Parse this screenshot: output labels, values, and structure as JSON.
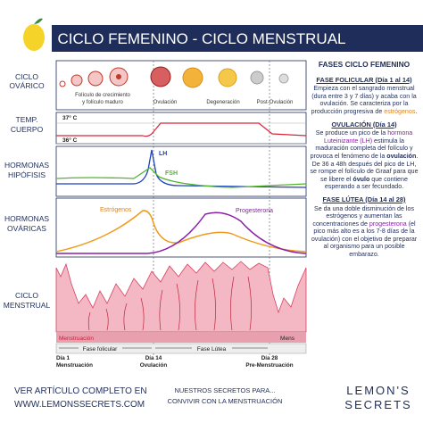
{
  "header": {
    "title": "CICLO FEMENINO - CICLO MENSTRUAL"
  },
  "row_labels": [
    [
      "CICLO",
      "OVÁRICO"
    ],
    [
      "TEMP.",
      "CUERPO"
    ],
    [
      "HORMONAS",
      "HIPÓFISIS"
    ],
    [
      "HORMONAS",
      "OVÁRICAS"
    ],
    [
      "CICLO",
      "MENSTRUAL"
    ]
  ],
  "ovary_labels": [
    [
      "Folículo de crecimiento",
      "y folículo maduro"
    ],
    [
      "Ovulación"
    ],
    [
      "Degeneración"
    ],
    [
      "Post-Ovulación"
    ]
  ],
  "temperature_labels": [
    "37° C",
    "36° C"
  ],
  "hormone_labels": [
    "LH",
    "FSH",
    "Estrógenos",
    "Progesterona"
  ],
  "phase_bar": [
    "Menstruación",
    "Fase folicular",
    "Fase Lútea",
    "Mens"
  ],
  "day_labels": [
    [
      "Día 1",
      "Menstruación"
    ],
    [
      "Día 14",
      "Ovulación"
    ],
    [
      "Día 28",
      "Pre-Menstruación"
    ]
  ],
  "sidebar": {
    "title": "FASES CICLO FEMENINO",
    "sections": [
      {
        "heading": "FASE FOLICULAR (Día 1 al 14)",
        "body": [
          "Empieza con el sangrado menstrual (dura entre 3 y 7 días) y acaba con la ovulación. Se caracteriza por la producción progresiva de ",
          "estrógenos",
          "."
        ]
      },
      {
        "heading": "OVULACIÓN (Día 14)",
        "body": [
          "Se produce un pico de la ",
          "hormona Luteinizante (LH)",
          " estimula la maduración completa del folículo y provoca el fenómeno de la ",
          "ovulación",
          ". De 36 a 48h después del pico de LH, se rompe el folículo de Graaf para que se libere el ",
          "óvulo",
          " que contiene esperando a ser fecundado."
        ]
      },
      {
        "heading": "FASE LÚTEA (Día 14 al 28)",
        "body": [
          "Se da una doble disminución de los estrógenos y aumentan las concentraciones de ",
          "progesterona",
          " (el pico más alto es a los 7-8 días de la ovulación) con el objetivo de preparar al organismo para un posible embarazo."
        ]
      }
    ]
  },
  "footer": {
    "link": [
      "VER ARTÍCULO COMPLETO EN",
      "WWW.LEMONSSECRETS.COM"
    ],
    "tagline": [
      "NUESTROS SECRETOS PARA...",
      "CONVIVIR CON LA MENSTRUACIÓN"
    ],
    "logo": [
      "LEMON'S",
      "SECRETS"
    ]
  }
}
